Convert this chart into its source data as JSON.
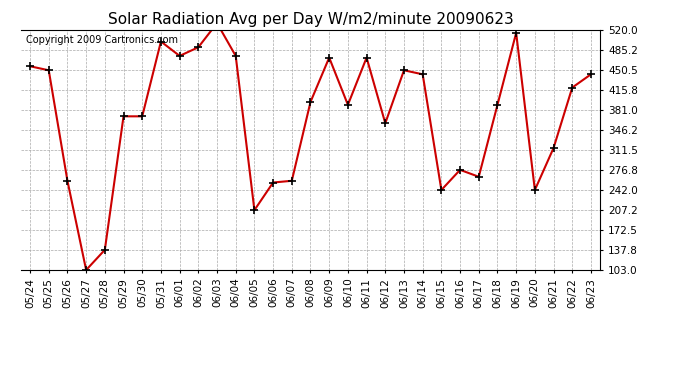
{
  "title": "Solar Radiation Avg per Day W/m2/minute 20090623",
  "copyright": "Copyright 2009 Cartronics.com",
  "x_labels": [
    "05/24",
    "05/25",
    "05/26",
    "05/27",
    "05/28",
    "05/29",
    "05/30",
    "05/31",
    "06/01",
    "06/02",
    "06/03",
    "06/04",
    "06/05",
    "06/06",
    "06/07",
    "06/08",
    "06/09",
    "06/10",
    "06/11",
    "06/12",
    "06/13",
    "06/14",
    "06/15",
    "06/16",
    "06/17",
    "06/18",
    "06/19",
    "06/20",
    "06/21",
    "06/22",
    "06/23"
  ],
  "y_values": [
    457,
    450,
    258,
    103,
    138,
    370,
    370,
    500,
    475,
    490,
    532,
    475,
    207,
    255,
    258,
    395,
    472,
    390,
    472,
    358,
    450,
    443,
    242,
    277,
    265,
    390,
    515,
    242,
    315,
    420,
    443
  ],
  "ylim_min": 103.0,
  "ylim_max": 520.0,
  "yticks": [
    103.0,
    137.8,
    172.5,
    207.2,
    242.0,
    276.8,
    311.5,
    346.2,
    381.0,
    415.8,
    450.5,
    485.2,
    520.0
  ],
  "line_color": "#cc0000",
  "marker": "+",
  "marker_color": "#000000",
  "bg_color": "#ffffff",
  "grid_color": "#aaaaaa",
  "title_fontsize": 11,
  "copyright_fontsize": 7,
  "tick_fontsize": 7.5
}
